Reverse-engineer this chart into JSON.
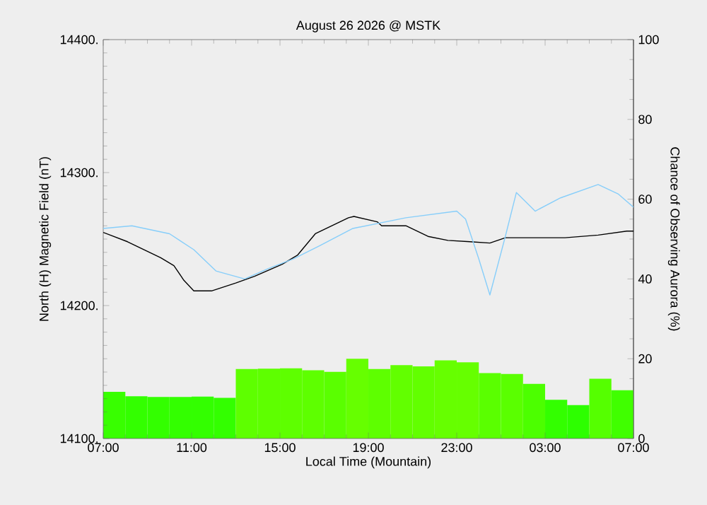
{
  "chart_data": {
    "type": "line",
    "title": "August 26 2026 @ MSTK",
    "xlabel": "Local Time (Mountain)",
    "ylabel": "North (H) Magnetic Field (nT)",
    "y2label": "Chance of Observing Aurora (%)",
    "xlim": [
      "2026-08-26T07:00",
      "2026-08-27T07:00"
    ],
    "xticks": [
      {
        "value": "2026-08-26T07:00",
        "label": "07:00"
      },
      {
        "value": "2026-08-26T11:00",
        "label": "11:00"
      },
      {
        "value": "2026-08-26T15:00",
        "label": "15:00"
      },
      {
        "value": "2026-08-26T19:00",
        "label": "19:00"
      },
      {
        "value": "2026-08-26T23:00",
        "label": "23:00"
      },
      {
        "value": "2026-08-27T03:00",
        "label": "03:00"
      },
      {
        "value": "2026-08-27T07:00",
        "label": "07:00"
      }
    ],
    "ylim": [
      14100,
      14400
    ],
    "yticks": [
      {
        "value": 14100,
        "label": "14100."
      },
      {
        "value": 14200,
        "label": "14200."
      },
      {
        "value": 14300,
        "label": "14300."
      },
      {
        "value": 14400,
        "label": "14400."
      }
    ],
    "y2lim": [
      0,
      100
    ],
    "y2ticks": [
      0,
      20,
      40,
      60,
      80,
      100
    ],
    "series": [
      {
        "type": "bar",
        "axis": "y2",
        "x": [
          "2026-08-26T07:30",
          "2026-08-26T08:30",
          "2026-08-26T09:30",
          "2026-08-26T10:30",
          "2026-08-26T11:30",
          "2026-08-26T12:30",
          "2026-08-26T13:30",
          "2026-08-26T14:30",
          "2026-08-26T15:30",
          "2026-08-26T16:30",
          "2026-08-26T17:30",
          "2026-08-26T18:30",
          "2026-08-26T19:30",
          "2026-08-26T20:30",
          "2026-08-26T21:30",
          "2026-08-26T22:30",
          "2026-08-26T23:30",
          "2026-08-27T00:30",
          "2026-08-27T01:30",
          "2026-08-27T02:30",
          "2026-08-27T03:30",
          "2026-08-27T04:30",
          "2026-08-27T05:30",
          "2026-08-27T06:30"
        ],
        "values": [
          11.7,
          10.6,
          10.4,
          10.4,
          10.5,
          10.2,
          17.4,
          17.5,
          17.6,
          17.1,
          16.7,
          20.0,
          17.4,
          18.4,
          18.1,
          19.6,
          19.1,
          16.4,
          16.2,
          13.7,
          9.7,
          8.4,
          15.0,
          12.1
        ],
        "colors": [
          "#38ff00",
          "#33ff00",
          "#33ff00",
          "#33ff00",
          "#33ff00",
          "#33ff00",
          "#5eff00",
          "#5eff00",
          "#5eff00",
          "#5eff00",
          "#5aff00",
          "#66ff00",
          "#5eff00",
          "#62ff00",
          "#62ff00",
          "#66ff00",
          "#66ff00",
          "#5aff00",
          "#5aff00",
          "#4cff00",
          "#33ff00",
          "#2dff00",
          "#55ff00",
          "#40ff00"
        ]
      },
      {
        "color": "#000000",
        "x": [
          "2026-08-26T07:00",
          "2026-08-26T08:06",
          "2026-08-26T09:36",
          "2026-08-26T10:12",
          "2026-08-26T10:39",
          "2026-08-26T11:06",
          "2026-08-26T11:54",
          "2026-08-26T13:00",
          "2026-08-26T13:51",
          "2026-08-26T15:06",
          "2026-08-26T15:48",
          "2026-08-26T16:36",
          "2026-08-26T18:06",
          "2026-08-26T18:21",
          "2026-08-26T19:24",
          "2026-08-26T19:36",
          "2026-08-26T20:42",
          "2026-08-26T21:42",
          "2026-08-26T22:36",
          "2026-08-26T23:36",
          "2026-08-27T00:30",
          "2026-08-27T01:12",
          "2026-08-27T03:54",
          "2026-08-27T05:24",
          "2026-08-27T06:42",
          "2026-08-27T07:00"
        ],
        "values": [
          14255,
          14248,
          14236,
          14230,
          14219,
          14211,
          14211,
          14217,
          14222,
          14231,
          14238,
          14254,
          14266,
          14267,
          14263,
          14260,
          14260,
          14252,
          14249,
          14248,
          14247,
          14251,
          14251,
          14253,
          14256,
          14256
        ]
      },
      {
        "color": "#87cefa",
        "x": [
          "2026-08-26T07:00",
          "2026-08-26T08:18",
          "2026-08-26T10:00",
          "2026-08-26T11:06",
          "2026-08-26T12:06",
          "2026-08-26T13:24",
          "2026-08-26T14:30",
          "2026-08-26T15:36",
          "2026-08-26T16:48",
          "2026-08-26T18:18",
          "2026-08-26T20:42",
          "2026-08-26T23:00",
          "2026-08-26T23:24",
          "2026-08-27T00:00",
          "2026-08-27T00:30",
          "2026-08-27T01:12",
          "2026-08-27T01:42",
          "2026-08-27T02:33",
          "2026-08-27T03:42",
          "2026-08-27T05:24",
          "2026-08-27T06:18",
          "2026-08-27T07:00"
        ],
        "values": [
          14258,
          14260,
          14254,
          14242,
          14226,
          14220,
          14228,
          14235,
          14245,
          14258,
          14266,
          14271,
          14265,
          14235,
          14208,
          14252,
          14285,
          14271,
          14281,
          14291,
          14284,
          14274
        ]
      }
    ]
  }
}
